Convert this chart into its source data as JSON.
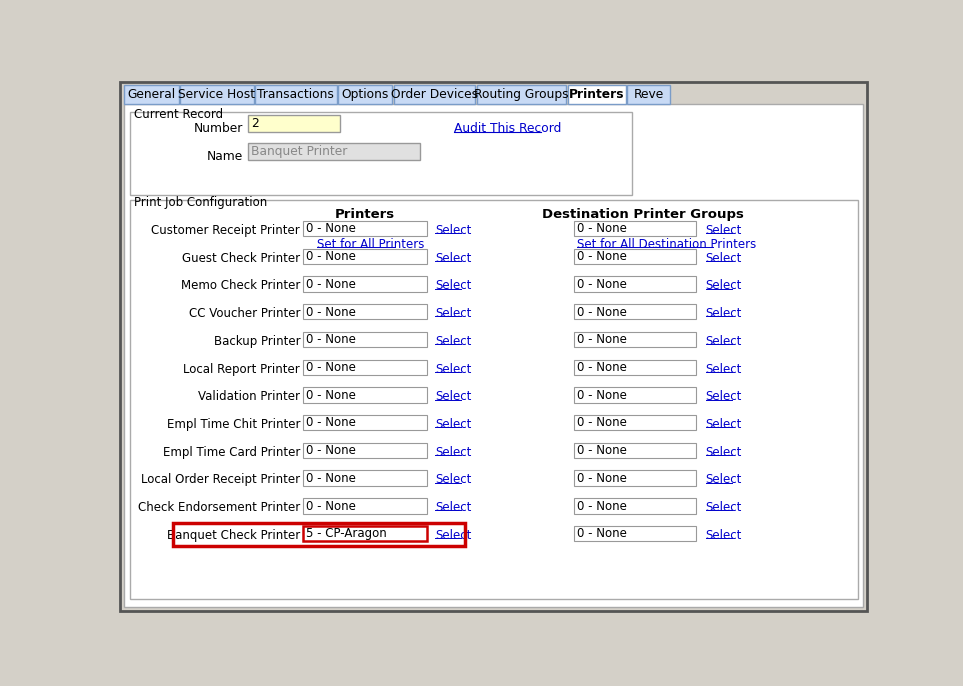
{
  "bg_color": "#d4d0c8",
  "content_bg": "#ffffff",
  "tab_bg": "#c8daf5",
  "tab_active_bg": "#ffffff",
  "tab_border": "#7a9cc8",
  "tabs": [
    "General",
    "Service Host",
    "Transactions",
    "Options",
    "Order Devices",
    "Routing Groups",
    "Printers",
    "Reve"
  ],
  "active_tab": "Printers",
  "current_record_label": "Current Record",
  "number_label": "Number",
  "number_value": "2",
  "name_label": "Name",
  "name_value": "Banquet Printer",
  "audit_link": "Audit This Record",
  "pjc_label": "Print Job Configuration",
  "printers_header": "Printers",
  "dest_header": "Destination Printer Groups",
  "rows": [
    {
      "label": "Customer Receipt Printer",
      "printer_val": "0 - None",
      "dest_val": "0 - None",
      "highlighted": false
    },
    {
      "label": "Guest Check Printer",
      "printer_val": "0 - None",
      "dest_val": "0 - None",
      "highlighted": false
    },
    {
      "label": "Memo Check Printer",
      "printer_val": "0 - None",
      "dest_val": "0 - None",
      "highlighted": false
    },
    {
      "label": "CC Voucher Printer",
      "printer_val": "0 - None",
      "dest_val": "0 - None",
      "highlighted": false
    },
    {
      "label": "Backup Printer",
      "printer_val": "0 - None",
      "dest_val": "0 - None",
      "highlighted": false
    },
    {
      "label": "Local Report Printer",
      "printer_val": "0 - None",
      "dest_val": "0 - None",
      "highlighted": false
    },
    {
      "label": "Validation Printer",
      "printer_val": "0 - None",
      "dest_val": "0 - None",
      "highlighted": false
    },
    {
      "label": "Empl Time Chit Printer",
      "printer_val": "0 - None",
      "dest_val": "0 - None",
      "highlighted": false
    },
    {
      "label": "Empl Time Card Printer",
      "printer_val": "0 - None",
      "dest_val": "0 - None",
      "highlighted": false
    },
    {
      "label": "Local Order Receipt Printer",
      "printer_val": "0 - None",
      "dest_val": "0 - None",
      "highlighted": false
    },
    {
      "label": "Check Endorsement Printer",
      "printer_val": "0 - None",
      "dest_val": "0 - None",
      "highlighted": false
    },
    {
      "label": "Banquet Check Printer",
      "printer_val": "5 - CP-Aragon",
      "dest_val": "0 - None",
      "highlighted": true
    }
  ],
  "link_color": "#0000cc",
  "text_color": "#000000",
  "label_color": "#000000",
  "box_border": "#999999",
  "highlight_border": "#cc0000",
  "set_for_all_link": "Set for All Printers",
  "set_for_all_dest_link": "Set for All Destination Printers",
  "number_box_bg": "#ffffcc",
  "name_box_bg": "#e0e0e0",
  "tab_widths": [
    70,
    95,
    105,
    70,
    105,
    115,
    75,
    55
  ]
}
